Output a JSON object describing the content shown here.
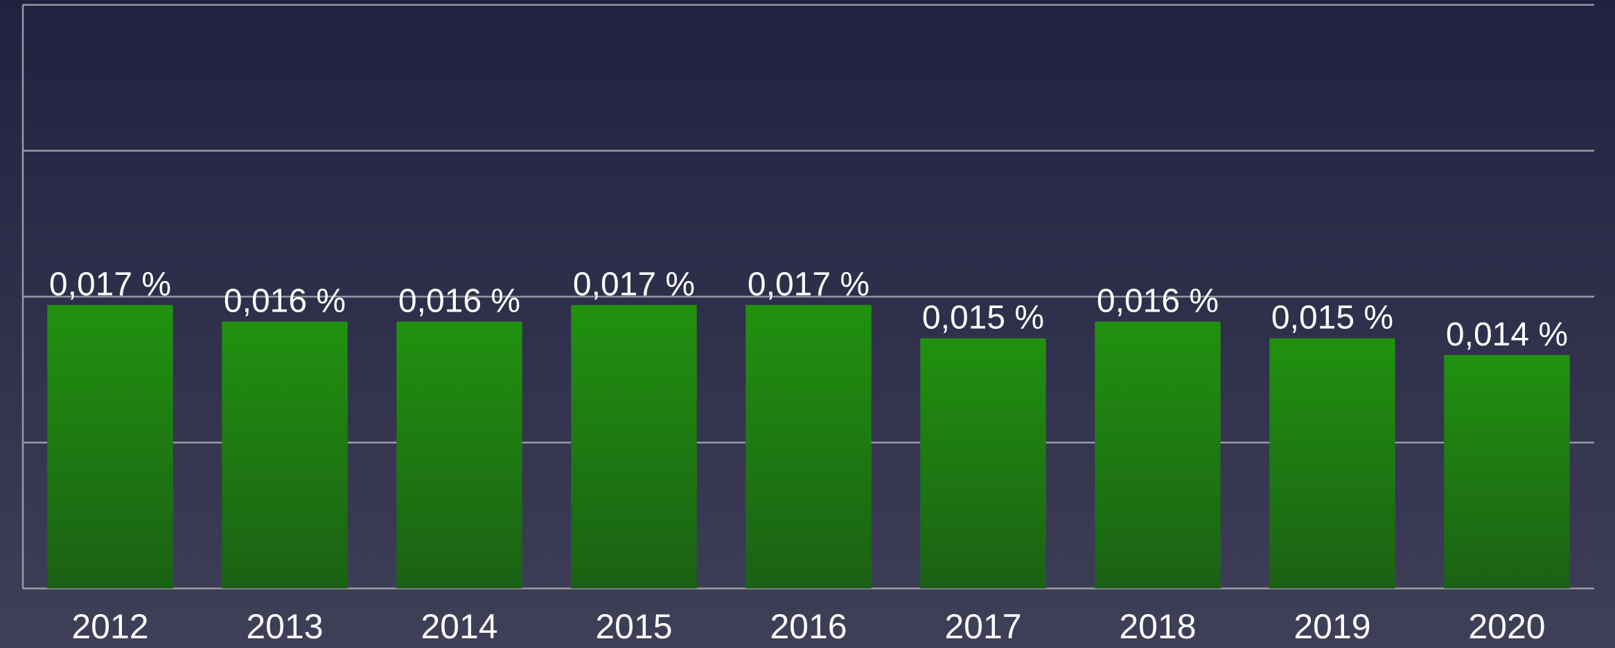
{
  "chart_data": {
    "type": "bar",
    "categories": [
      "2012",
      "2013",
      "2014",
      "2015",
      "2016",
      "2017",
      "2018",
      "2019",
      "2020"
    ],
    "values": [
      0.017,
      0.016,
      0.016,
      0.017,
      0.017,
      0.015,
      0.016,
      0.015,
      0.014
    ],
    "value_labels": [
      "0,017 %",
      "0,016 %",
      "0,016 %",
      "0,017 %",
      "0,017 %",
      "0,015 %",
      "0,016 %",
      "0,015 %",
      "0,014 %"
    ],
    "color": "#1f8a10",
    "ylim": [
      0,
      0.035
    ],
    "yticks": [
      0,
      0.00875,
      0.0175,
      0.02625,
      0.035
    ],
    "grid": true
  }
}
